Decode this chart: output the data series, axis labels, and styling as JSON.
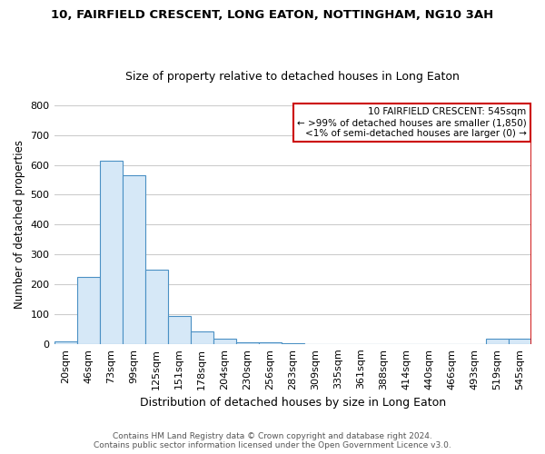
{
  "title1": "10, FAIRFIELD CRESCENT, LONG EATON, NOTTINGHAM, NG10 3AH",
  "title2": "Size of property relative to detached houses in Long Eaton",
  "xlabel": "Distribution of detached houses by size in Long Eaton",
  "ylabel": "Number of detached properties",
  "categories": [
    "20sqm",
    "46sqm",
    "73sqm",
    "99sqm",
    "125sqm",
    "151sqm",
    "178sqm",
    "204sqm",
    "230sqm",
    "256sqm",
    "283sqm",
    "309sqm",
    "335sqm",
    "361sqm",
    "388sqm",
    "414sqm",
    "440sqm",
    "466sqm",
    "493sqm",
    "519sqm",
    "545sqm"
  ],
  "values": [
    10,
    225,
    615,
    565,
    250,
    95,
    42,
    18,
    5,
    5,
    2,
    0,
    0,
    0,
    0,
    0,
    0,
    0,
    0,
    18,
    18
  ],
  "bar_fill_color": "#d6e8f7",
  "bar_edge_color": "#4a90c4",
  "highlight_bar_index": 20,
  "highlight_right_line_color": "#cc0000",
  "ylim": [
    0,
    800
  ],
  "yticks": [
    0,
    100,
    200,
    300,
    400,
    500,
    600,
    700,
    800
  ],
  "annotation_title": "10 FAIRFIELD CRESCENT: 545sqm",
  "annotation_line1": "← >99% of detached houses are smaller (1,850)",
  "annotation_line2": "<1% of semi-detached houses are larger (0) →",
  "annotation_box_color": "#cc0000",
  "footer1": "Contains HM Land Registry data © Crown copyright and database right 2024.",
  "footer2": "Contains public sector information licensed under the Open Government Licence v3.0.",
  "background_color": "#ffffff",
  "grid_color": "#cccccc",
  "title1_fontsize": 9.5,
  "title2_fontsize": 9.0,
  "xlabel_fontsize": 9.0,
  "ylabel_fontsize": 8.5,
  "tick_fontsize": 8.0,
  "footer_fontsize": 6.5,
  "ann_fontsize": 7.5
}
